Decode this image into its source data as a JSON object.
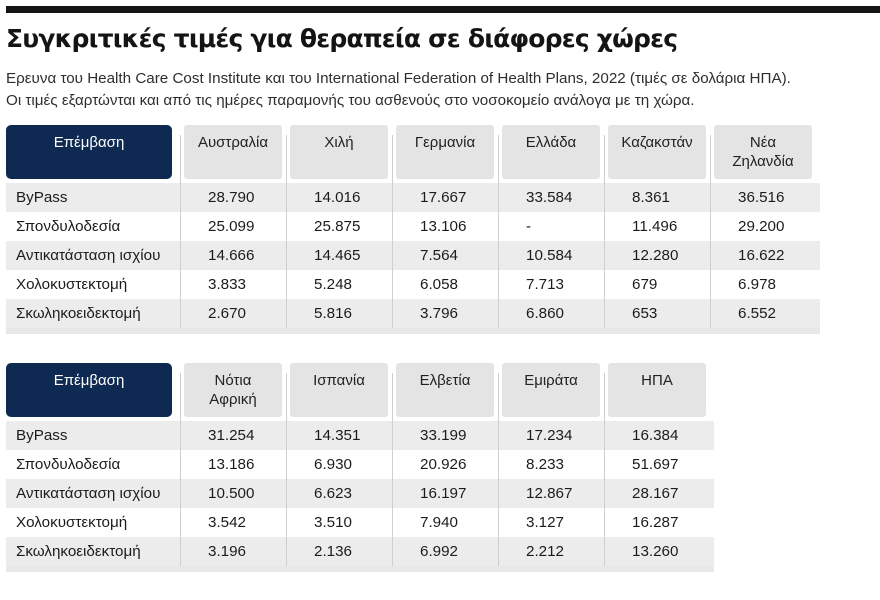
{
  "title": "Συγκριτικές τιμές για θεραπεία σε διάφορες χώρες",
  "subtitle_lines": [
    "Ερευνα του Health Care Cost Institute και του International Federation of Health Plans, 2022 (τιμές σε δολάρια ΗΠΑ).",
    "Οι τιμές εξαρτώνται και από τις ημέρες παραμονής του ασθενούς στο νοσοκομείο ανάλογα με τη χώρα."
  ],
  "chart_data": [
    {
      "type": "table",
      "header_label": "Επέμβαση",
      "columns": [
        [
          "Αυστραλία"
        ],
        [
          "Χιλή"
        ],
        [
          "Γερμανία"
        ],
        [
          "Ελλάδα"
        ],
        [
          "Καζακστάν"
        ],
        [
          "Νέα",
          "Ζηλανδία"
        ]
      ],
      "rows": [
        {
          "label": "ByPass",
          "values": [
            "28.790",
            "14.016",
            "17.667",
            "33.584",
            "8.361",
            "36.516"
          ]
        },
        {
          "label": "Σπονδυλοδεσία",
          "values": [
            "25.099",
            "25.875",
            "13.106",
            "-",
            "11.496",
            "29.200"
          ]
        },
        {
          "label": "Αντικατάσταση ισχίου",
          "values": [
            "14.666",
            "14.465",
            "7.564",
            "10.584",
            "12.280",
            "16.622"
          ]
        },
        {
          "label": "Χολοκυστεκτομή",
          "values": [
            "3.833",
            "5.248",
            "6.058",
            "7.713",
            "679",
            "6.978"
          ]
        },
        {
          "label": "Σκωληκοειδεκτομή",
          "values": [
            "2.670",
            "5.816",
            "3.796",
            "6.860",
            "653",
            "6.552"
          ]
        }
      ]
    },
    {
      "type": "table",
      "header_label": "Επέμβαση",
      "columns": [
        [
          "Νότια",
          "Αφρική"
        ],
        [
          "Ισπανία"
        ],
        [
          "Ελβετία"
        ],
        [
          "Εμιράτα"
        ],
        [
          "ΗΠΑ"
        ]
      ],
      "rows": [
        {
          "label": "ByPass",
          "values": [
            "31.254",
            "14.351",
            "33.199",
            "17.234",
            "16.384"
          ]
        },
        {
          "label": "Σπονδυλοδεσία",
          "values": [
            "13.186",
            "6.930",
            "20.926",
            "8.233",
            "51.697"
          ]
        },
        {
          "label": "Αντικατάσταση ισχίου",
          "values": [
            "10.500",
            "6.623",
            "16.197",
            "12.867",
            "28.167"
          ]
        },
        {
          "label": "Χολοκυστεκτομή",
          "values": [
            "3.542",
            "3.510",
            "7.940",
            "3.127",
            "16.287"
          ]
        },
        {
          "label": "Σκωληκοειδεκτομή",
          "values": [
            "3.196",
            "2.136",
            "6.992",
            "2.212",
            "13.260"
          ]
        }
      ]
    }
  ]
}
